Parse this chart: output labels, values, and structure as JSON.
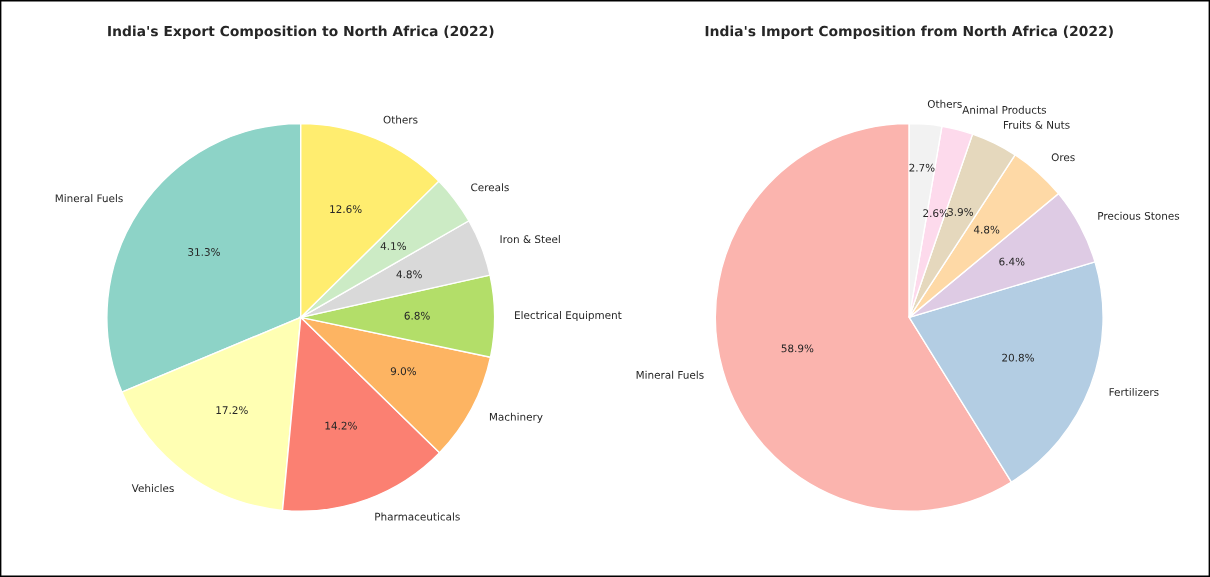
{
  "chart_data": [
    {
      "type": "pie",
      "title": "India's Export Composition to North Africa (2022)",
      "categories": [
        "Mineral Fuels",
        "Vehicles",
        "Pharmaceuticals",
        "Machinery",
        "Electrical Equipment",
        "Iron & Steel",
        "Cereals",
        "Others"
      ],
      "values": [
        31.3,
        17.2,
        14.2,
        9.0,
        6.8,
        4.8,
        4.1,
        12.6
      ],
      "value_labels": [
        "31.3%",
        "17.2%",
        "14.2%",
        "9.0%",
        "6.8%",
        "4.8%",
        "4.1%",
        "12.6%"
      ],
      "colors": [
        "#8dd3c7",
        "#ffffb3",
        "#fb8072",
        "#fdb462",
        "#b3de69",
        "#d9d9d9",
        "#ccebc5",
        "#ffed6f"
      ]
    },
    {
      "type": "pie",
      "title": "India's Import Composition from North Africa (2022)",
      "categories": [
        "Mineral Fuels",
        "Fertilizers",
        "Precious Stones",
        "Ores",
        "Fruits & Nuts",
        "Animal Products",
        "Others"
      ],
      "values": [
        58.9,
        20.8,
        6.4,
        4.8,
        3.9,
        2.6,
        2.7
      ],
      "value_labels": [
        "58.9%",
        "20.8%",
        "6.4%",
        "4.8%",
        "3.9%",
        "2.6%",
        "2.7%"
      ],
      "colors": [
        "#fbb4ae",
        "#b3cde3",
        "#decbe4",
        "#fed9a6",
        "#e5d8bd",
        "#fddaec",
        "#f2f2f2"
      ]
    }
  ]
}
